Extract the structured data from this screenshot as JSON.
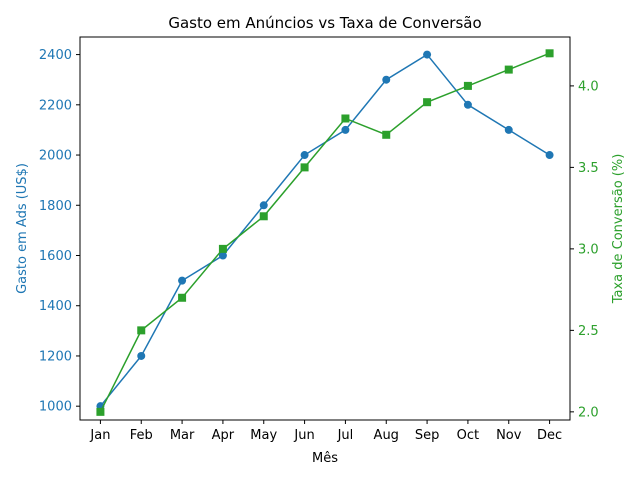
{
  "chart_data": {
    "type": "line",
    "title": "Gasto em Anúncios vs Taxa de Conversão",
    "xlabel": "Mês",
    "categories": [
      "Jan",
      "Feb",
      "Mar",
      "Apr",
      "May",
      "Jun",
      "Jul",
      "Aug",
      "Sep",
      "Oct",
      "Nov",
      "Dec"
    ],
    "y_left": {
      "label": "Gasto em Ads (US$)",
      "ticks": [
        "1000",
        "1200",
        "1400",
        "1600",
        "1800",
        "2000",
        "2200",
        "2400"
      ],
      "range": [
        945,
        2470
      ],
      "color": "#1f77b4"
    },
    "y_right": {
      "label": "Taxa de Conversão (%)",
      "ticks": [
        "2.0",
        "2.5",
        "3.0",
        "3.5",
        "4.0"
      ],
      "range": [
        1.95,
        4.3
      ],
      "color": "#2ca02c"
    },
    "series": [
      {
        "axis": "left",
        "marker": "circle",
        "color": "#1f77b4",
        "values": [
          1000,
          1200,
          1500,
          1600,
          1800,
          2000,
          2100,
          2300,
          2400,
          2200,
          2100,
          2000
        ]
      },
      {
        "axis": "right",
        "marker": "square",
        "color": "#2ca02c",
        "values": [
          2.0,
          2.5,
          2.7,
          3.0,
          3.2,
          3.5,
          3.8,
          3.7,
          3.9,
          4.0,
          4.1,
          4.2
        ]
      }
    ],
    "grid": false
  }
}
